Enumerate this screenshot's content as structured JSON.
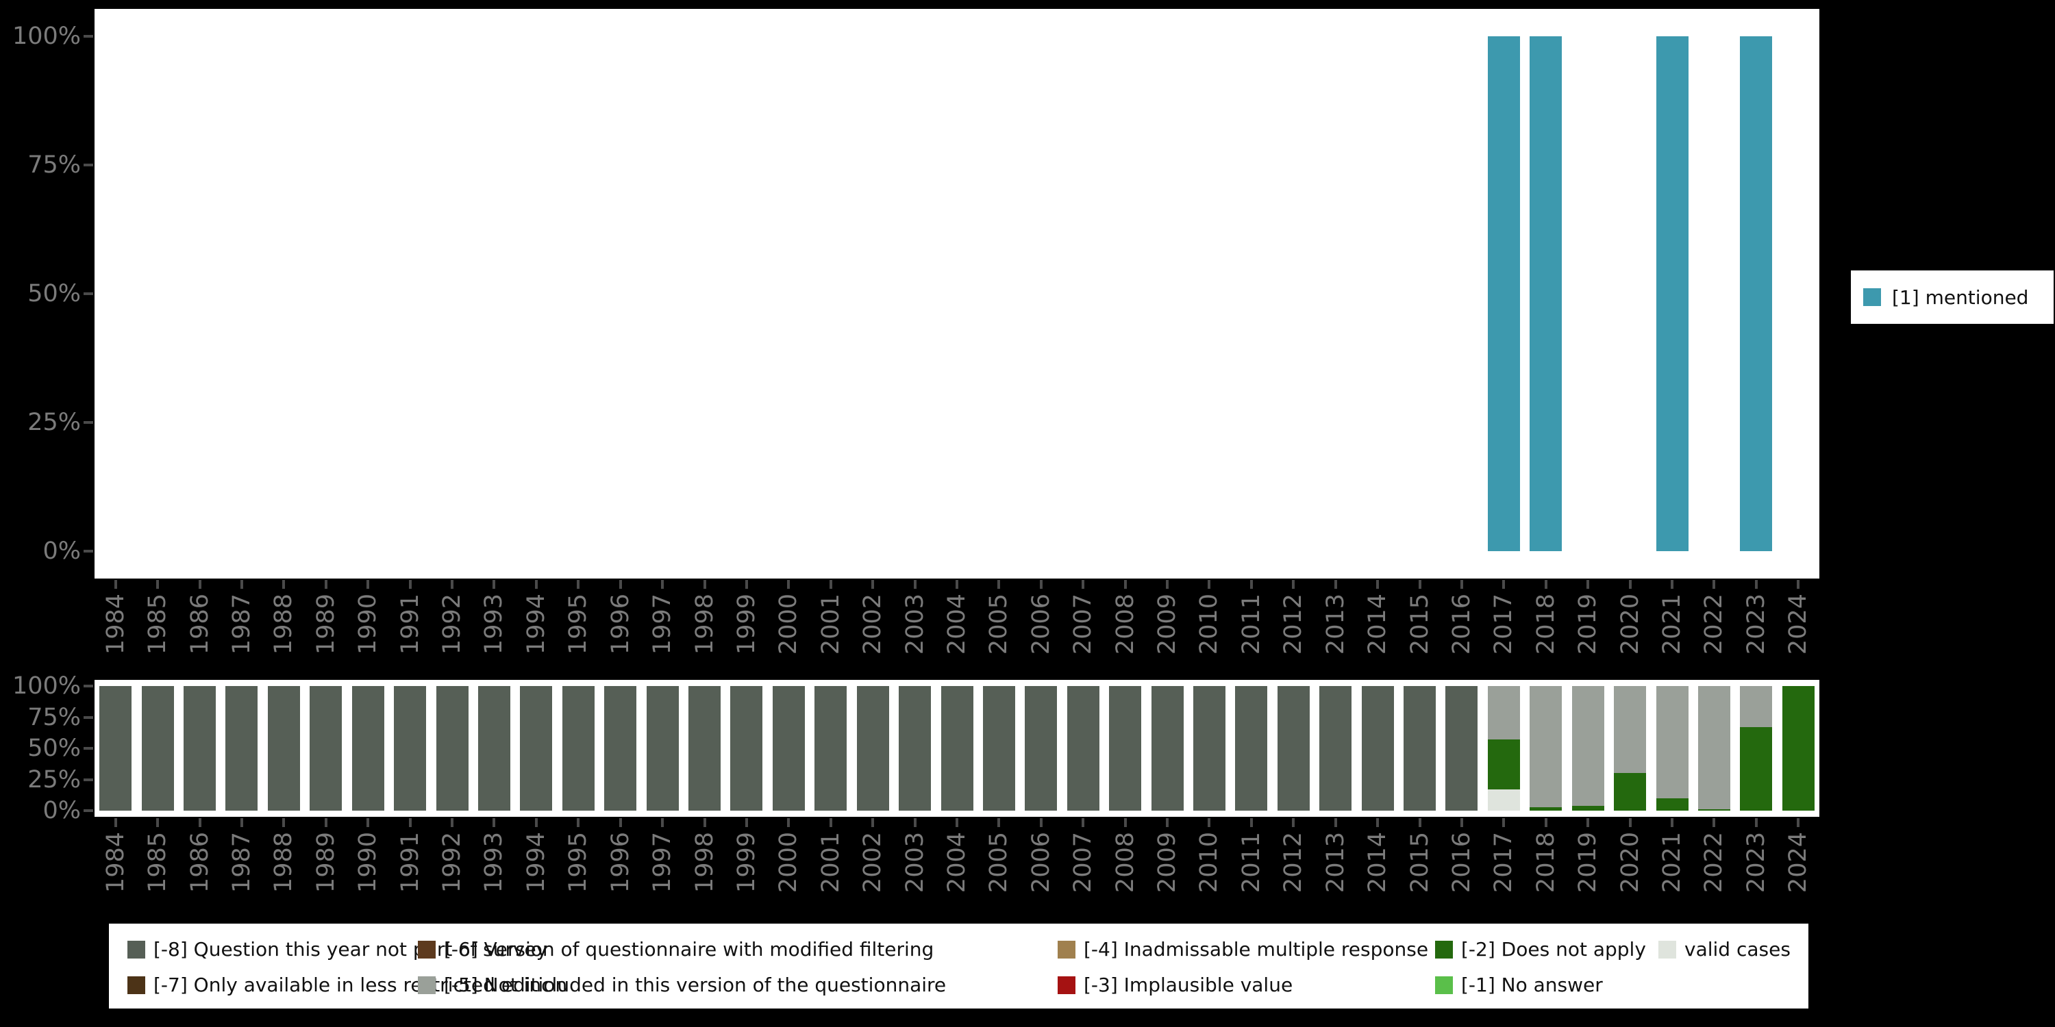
{
  "colors": {
    "background": "#000000",
    "panel": "#ffffff",
    "axis_text": "#7b7b7b",
    "tick_mark": "#4a4a4a",
    "mentioned": "#3d99ae",
    "-8": "#565f56",
    "-7": "#4c3317",
    "-6": "#5d3a1e",
    "-5": "#9aa099",
    "-4": "#a0804e",
    "-3": "#a51212",
    "-2": "#24690e",
    "-1": "#5abf4a",
    "valid": "#dfe4dd"
  },
  "y_tick_labels": [
    "100%",
    "75%",
    "50%",
    "25%",
    "0%"
  ],
  "years": [
    "1984",
    "1985",
    "1986",
    "1987",
    "1988",
    "1989",
    "1990",
    "1991",
    "1992",
    "1993",
    "1994",
    "1995",
    "1996",
    "1997",
    "1998",
    "1999",
    "2000",
    "2001",
    "2002",
    "2003",
    "2004",
    "2005",
    "2006",
    "2007",
    "2008",
    "2009",
    "2010",
    "2011",
    "2012",
    "2013",
    "2014",
    "2015",
    "2016",
    "2017",
    "2018",
    "2019",
    "2020",
    "2021",
    "2022",
    "2023",
    "2024"
  ],
  "legend_top": {
    "label": "[1] mentioned",
    "color_key": "mentioned"
  },
  "legend_bottom": {
    "columns": [
      [
        {
          "key": "-8",
          "label": "[-8] Question this year not part of survey"
        },
        {
          "key": "-7",
          "label": "[-7] Only available in less restricted edition"
        }
      ],
      [
        {
          "key": "-6",
          "label": "[-6] Version of questionnaire with modified filtering"
        },
        {
          "key": "-5",
          "label": "[-5] Not included in this version of the questionnaire"
        }
      ],
      [
        {
          "key": "-4",
          "label": "[-4] Inadmissable multiple response"
        },
        {
          "key": "-3",
          "label": "[-3] Implausible value"
        }
      ],
      [
        {
          "key": "-2",
          "label": "[-2] Does not apply"
        },
        {
          "key": "-1",
          "label": "[-1] No answer"
        }
      ],
      [
        {
          "key": "valid",
          "label": "valid cases"
        }
      ]
    ]
  },
  "chart_data": [
    {
      "type": "bar",
      "title": "",
      "xlabel": "",
      "ylabel": "",
      "ylim": [
        0,
        100
      ],
      "grid": false,
      "legend_position": "right",
      "categories": [
        "1984",
        "1985",
        "1986",
        "1987",
        "1988",
        "1989",
        "1990",
        "1991",
        "1992",
        "1993",
        "1994",
        "1995",
        "1996",
        "1997",
        "1998",
        "1999",
        "2000",
        "2001",
        "2002",
        "2003",
        "2004",
        "2005",
        "2006",
        "2007",
        "2008",
        "2009",
        "2010",
        "2011",
        "2012",
        "2013",
        "2014",
        "2015",
        "2016",
        "2017",
        "2018",
        "2019",
        "2020",
        "2021",
        "2022",
        "2023",
        "2024"
      ],
      "series": [
        {
          "name": "[1] mentioned",
          "color_key": "mentioned",
          "values": [
            0,
            0,
            0,
            0,
            0,
            0,
            0,
            0,
            0,
            0,
            0,
            0,
            0,
            0,
            0,
            0,
            0,
            0,
            0,
            0,
            0,
            0,
            0,
            0,
            0,
            0,
            0,
            0,
            0,
            0,
            0,
            0,
            0,
            100,
            100,
            0,
            0,
            100,
            0,
            100,
            0
          ]
        }
      ]
    },
    {
      "type": "stacked_bar_percent",
      "title": "",
      "xlabel": "",
      "ylabel": "",
      "ylim": [
        0,
        100
      ],
      "grid": false,
      "legend_position": "bottom",
      "stack_order_bottom_to_top": [
        "valid",
        "-1",
        "-2",
        "-3",
        "-4",
        "-5",
        "-6",
        "-7",
        "-8"
      ],
      "bars": [
        {
          "year": "1984",
          "segments": [
            [
              "-8",
              100
            ]
          ]
        },
        {
          "year": "1985",
          "segments": [
            [
              "-8",
              100
            ]
          ]
        },
        {
          "year": "1986",
          "segments": [
            [
              "-8",
              100
            ]
          ]
        },
        {
          "year": "1987",
          "segments": [
            [
              "-8",
              100
            ]
          ]
        },
        {
          "year": "1988",
          "segments": [
            [
              "-8",
              100
            ]
          ]
        },
        {
          "year": "1989",
          "segments": [
            [
              "-8",
              100
            ]
          ]
        },
        {
          "year": "1990",
          "segments": [
            [
              "-8",
              100
            ]
          ]
        },
        {
          "year": "1991",
          "segments": [
            [
              "-8",
              100
            ]
          ]
        },
        {
          "year": "1992",
          "segments": [
            [
              "-8",
              100
            ]
          ]
        },
        {
          "year": "1993",
          "segments": [
            [
              "-8",
              100
            ]
          ]
        },
        {
          "year": "1994",
          "segments": [
            [
              "-8",
              100
            ]
          ]
        },
        {
          "year": "1995",
          "segments": [
            [
              "-8",
              100
            ]
          ]
        },
        {
          "year": "1996",
          "segments": [
            [
              "-8",
              100
            ]
          ]
        },
        {
          "year": "1997",
          "segments": [
            [
              "-8",
              100
            ]
          ]
        },
        {
          "year": "1998",
          "segments": [
            [
              "-8",
              100
            ]
          ]
        },
        {
          "year": "1999",
          "segments": [
            [
              "-8",
              100
            ]
          ]
        },
        {
          "year": "2000",
          "segments": [
            [
              "-8",
              100
            ]
          ]
        },
        {
          "year": "2001",
          "segments": [
            [
              "-8",
              100
            ]
          ]
        },
        {
          "year": "2002",
          "segments": [
            [
              "-8",
              100
            ]
          ]
        },
        {
          "year": "2003",
          "segments": [
            [
              "-8",
              100
            ]
          ]
        },
        {
          "year": "2004",
          "segments": [
            [
              "-8",
              100
            ]
          ]
        },
        {
          "year": "2005",
          "segments": [
            [
              "-8",
              100
            ]
          ]
        },
        {
          "year": "2006",
          "segments": [
            [
              "-8",
              100
            ]
          ]
        },
        {
          "year": "2007",
          "segments": [
            [
              "-8",
              100
            ]
          ]
        },
        {
          "year": "2008",
          "segments": [
            [
              "-8",
              100
            ]
          ]
        },
        {
          "year": "2009",
          "segments": [
            [
              "-8",
              100
            ]
          ]
        },
        {
          "year": "2010",
          "segments": [
            [
              "-8",
              100
            ]
          ]
        },
        {
          "year": "2011",
          "segments": [
            [
              "-8",
              100
            ]
          ]
        },
        {
          "year": "2012",
          "segments": [
            [
              "-8",
              100
            ]
          ]
        },
        {
          "year": "2013",
          "segments": [
            [
              "-8",
              100
            ]
          ]
        },
        {
          "year": "2014",
          "segments": [
            [
              "-8",
              100
            ]
          ]
        },
        {
          "year": "2015",
          "segments": [
            [
              "-8",
              100
            ]
          ]
        },
        {
          "year": "2016",
          "segments": [
            [
              "-8",
              100
            ]
          ]
        },
        {
          "year": "2017",
          "segments": [
            [
              "valid",
              17
            ],
            [
              "-2",
              40
            ],
            [
              "-5",
              43
            ]
          ]
        },
        {
          "year": "2018",
          "segments": [
            [
              "-2",
              3
            ],
            [
              "-5",
              97
            ]
          ]
        },
        {
          "year": "2019",
          "segments": [
            [
              "-2",
              4
            ],
            [
              "-5",
              96
            ]
          ]
        },
        {
          "year": "2020",
          "segments": [
            [
              "-2",
              30
            ],
            [
              "-5",
              70
            ]
          ]
        },
        {
          "year": "2021",
          "segments": [
            [
              "-2",
              10
            ],
            [
              "-5",
              90
            ]
          ]
        },
        {
          "year": "2022",
          "segments": [
            [
              "-2",
              1
            ],
            [
              "-5",
              99
            ]
          ]
        },
        {
          "year": "2023",
          "segments": [
            [
              "-2",
              67
            ],
            [
              "-5",
              33
            ]
          ]
        },
        {
          "year": "2024",
          "segments": [
            [
              "-2",
              100
            ]
          ]
        }
      ]
    }
  ]
}
